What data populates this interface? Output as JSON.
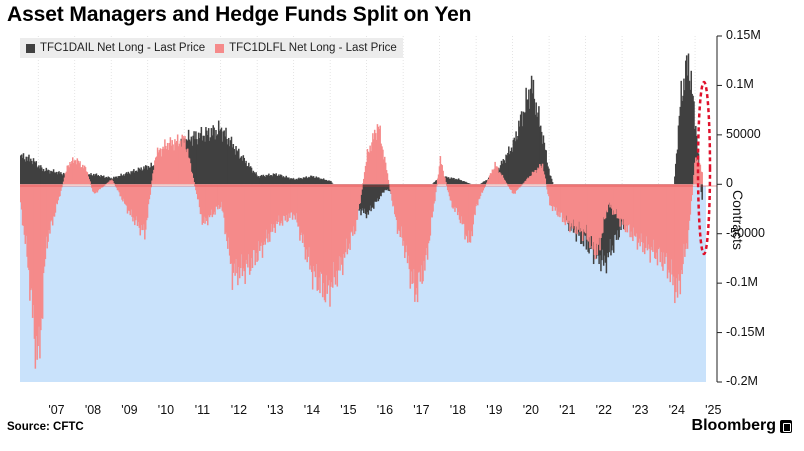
{
  "title": "Asset Managers and Hedge Funds Split on Yen",
  "source": "Source: CFTC",
  "brand": "Bloomberg",
  "colors": {
    "background": "#ffffff",
    "area": "#c9e2fb",
    "series1": "#404040",
    "series2": "#f58a8a",
    "highlight": "#e0112b",
    "grid": "#d9d9d9"
  },
  "chart_data": {
    "type": "area",
    "title": "Asset Managers and Hedge Funds Split on Yen",
    "ylabel": "Contracts",
    "ylim": [
      -200000,
      150000
    ],
    "y_axis_side": "right",
    "grid": "vertical",
    "legend_position": "top-left",
    "y_ticks": [
      {
        "value": 150000,
        "label": "0.15M"
      },
      {
        "value": 100000,
        "label": "0.1M"
      },
      {
        "value": 50000,
        "label": "50000"
      },
      {
        "value": 0,
        "label": "0"
      },
      {
        "value": -50000,
        "label": "-50000"
      },
      {
        "value": -100000,
        "label": "-0.1M"
      },
      {
        "value": -150000,
        "label": "-0.15M"
      },
      {
        "value": -200000,
        "label": "-0.2M"
      }
    ],
    "x_ticks": [
      "'07",
      "'08",
      "'09",
      "'10",
      "'11",
      "'12",
      "'13",
      "'14",
      "'15",
      "'16",
      "'17",
      "'18",
      "'19",
      "'20",
      "'21",
      "'22",
      "'23",
      "'24",
      "'25"
    ],
    "x_range": [
      2006.5,
      2025.3
    ],
    "series": [
      {
        "name": "TFC1DAIL Net Long - Last Price",
        "color": "#404040",
        "x": [
          2006.5,
          2006.8,
          2007.1,
          2007.5,
          2008.0,
          2008.5,
          2009.0,
          2009.5,
          2010.0,
          2010.5,
          2011.0,
          2011.5,
          2012.0,
          2012.5,
          2013.0,
          2013.5,
          2014.0,
          2014.5,
          2015.0,
          2015.5,
          2016.0,
          2016.5,
          2017.0,
          2017.5,
          2018.0,
          2018.5,
          2019.0,
          2019.5,
          2020.0,
          2020.5,
          2020.8,
          2021.0,
          2021.5,
          2022.0,
          2022.5,
          2023.0,
          2023.5,
          2024.0,
          2024.3,
          2024.6,
          2024.8,
          2025.0,
          2025.2
        ],
        "values": [
          28000,
          25000,
          15000,
          12000,
          8000,
          10000,
          6000,
          12000,
          18000,
          20000,
          45000,
          50000,
          55000,
          30000,
          8000,
          10000,
          5000,
          8000,
          3000,
          -20000,
          -30000,
          -5000,
          -15000,
          -10000,
          8000,
          5000,
          -2000,
          10000,
          40000,
          100000,
          50000,
          10000,
          -40000,
          -60000,
          -80000,
          -40000,
          -30000,
          -40000,
          -50000,
          90000,
          125000,
          60000,
          -30000
        ]
      },
      {
        "name": "TFC1DLFL Net Long - Last Price",
        "color": "#f58a8a",
        "x": [
          2006.5,
          2006.7,
          2006.9,
          2007.0,
          2007.2,
          2007.5,
          2007.8,
          2008.0,
          2008.3,
          2008.5,
          2009.0,
          2009.5,
          2009.9,
          2010.2,
          2010.5,
          2011.0,
          2011.5,
          2012.0,
          2012.3,
          2012.7,
          2013.0,
          2013.5,
          2014.0,
          2014.5,
          2014.9,
          2015.3,
          2015.7,
          2016.0,
          2016.3,
          2016.5,
          2016.8,
          2017.0,
          2017.3,
          2017.6,
          2018.0,
          2018.3,
          2018.5,
          2018.8,
          2019.0,
          2019.5,
          2020.0,
          2020.5,
          2020.8,
          2021.0,
          2021.5,
          2022.0,
          2022.3,
          2022.6,
          2023.0,
          2023.5,
          2023.9,
          2024.2,
          2024.5,
          2024.8,
          2025.0,
          2025.2
        ],
        "values": [
          -20000,
          -80000,
          -160000,
          -175000,
          -60000,
          -20000,
          20000,
          25000,
          15000,
          -10000,
          5000,
          -30000,
          -50000,
          30000,
          40000,
          45000,
          -40000,
          -20000,
          -90000,
          -85000,
          -70000,
          -40000,
          -30000,
          -90000,
          -110000,
          -80000,
          -40000,
          30000,
          60000,
          20000,
          -40000,
          -60000,
          -110000,
          -80000,
          25000,
          -20000,
          -30000,
          -60000,
          -20000,
          20000,
          -10000,
          10000,
          20000,
          -20000,
          -40000,
          -50000,
          -70000,
          -20000,
          -40000,
          -60000,
          -70000,
          -80000,
          -110000,
          -50000,
          30000,
          10000
        ]
      }
    ],
    "annotation": "red dashed ellipse around most recent data"
  }
}
